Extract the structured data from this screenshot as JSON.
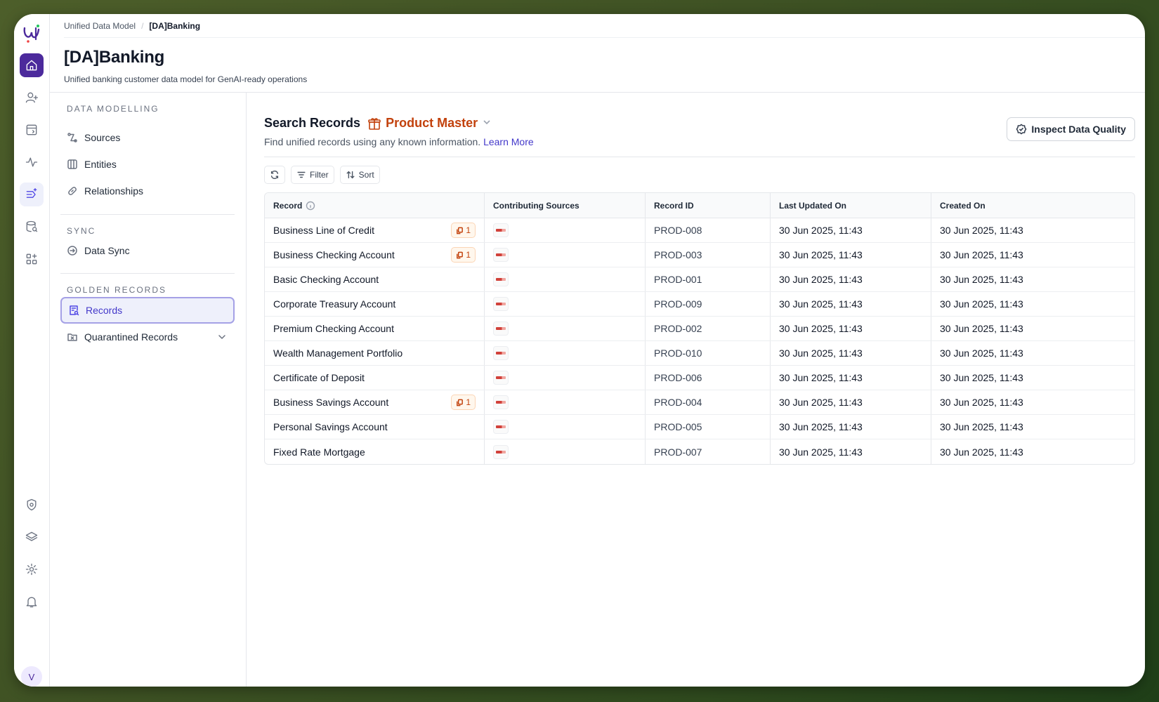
{
  "breadcrumb": {
    "root": "Unified Data Model",
    "current": "[DA]Banking"
  },
  "page": {
    "title": "[DA]Banking",
    "subtitle": "Unified banking customer data model for GenAI-ready operations"
  },
  "sidebar": {
    "sections": [
      {
        "label": "DATA MODELLING"
      },
      {
        "label": "SYNC"
      },
      {
        "label": "GOLDEN RECORDS"
      }
    ],
    "items": [
      {
        "label": "Sources",
        "icon": "sources-icon"
      },
      {
        "label": "Entities",
        "icon": "columns-icon"
      },
      {
        "label": "Relationships",
        "icon": "link-icon"
      },
      {
        "label": "Data Sync",
        "icon": "sync-icon"
      },
      {
        "label": "Records",
        "icon": "records-icon",
        "active": true
      },
      {
        "label": "Quarantined Records",
        "icon": "quarantine-icon"
      }
    ]
  },
  "rail": {
    "avatar_initial": "V"
  },
  "main": {
    "search_title": "Search Records",
    "entity": "Product Master",
    "subtitle": "Find unified records using any known information.",
    "learn_more": "Learn More",
    "inspect_label": "Inspect Data Quality",
    "toolbar": {
      "filter": "Filter",
      "sort": "Sort"
    }
  },
  "table": {
    "columns": [
      "Record",
      "Contributing Sources",
      "Record ID",
      "Last Updated On",
      "Created On"
    ],
    "rows": [
      {
        "record": "Business Line of Credit",
        "dup": "1",
        "id": "PROD-008",
        "updated": "30 Jun 2025, 11:43",
        "created": "30 Jun 2025, 11:43"
      },
      {
        "record": "Business Checking Account",
        "dup": "1",
        "id": "PROD-003",
        "updated": "30 Jun 2025, 11:43",
        "created": "30 Jun 2025, 11:43"
      },
      {
        "record": "Basic Checking Account",
        "dup": null,
        "id": "PROD-001",
        "updated": "30 Jun 2025, 11:43",
        "created": "30 Jun 2025, 11:43"
      },
      {
        "record": "Corporate Treasury Account",
        "dup": null,
        "id": "PROD-009",
        "updated": "30 Jun 2025, 11:43",
        "created": "30 Jun 2025, 11:43"
      },
      {
        "record": "Premium Checking Account",
        "dup": null,
        "id": "PROD-002",
        "updated": "30 Jun 2025, 11:43",
        "created": "30 Jun 2025, 11:43"
      },
      {
        "record": "Wealth Management Portfolio",
        "dup": null,
        "id": "PROD-010",
        "updated": "30 Jun 2025, 11:43",
        "created": "30 Jun 2025, 11:43"
      },
      {
        "record": "Certificate of Deposit",
        "dup": null,
        "id": "PROD-006",
        "updated": "30 Jun 2025, 11:43",
        "created": "30 Jun 2025, 11:43"
      },
      {
        "record": "Business Savings Account",
        "dup": "1",
        "id": "PROD-004",
        "updated": "30 Jun 2025, 11:43",
        "created": "30 Jun 2025, 11:43"
      },
      {
        "record": "Personal Savings Account",
        "dup": null,
        "id": "PROD-005",
        "updated": "30 Jun 2025, 11:43",
        "created": "30 Jun 2025, 11:43"
      },
      {
        "record": "Fixed Rate Mortgage",
        "dup": null,
        "id": "PROD-007",
        "updated": "30 Jun 2025, 11:43",
        "created": "30 Jun 2025, 11:43"
      }
    ]
  },
  "colors": {
    "accent": "#4f46e5",
    "brand": "#4c2a9c",
    "entity": "#c2410c"
  }
}
